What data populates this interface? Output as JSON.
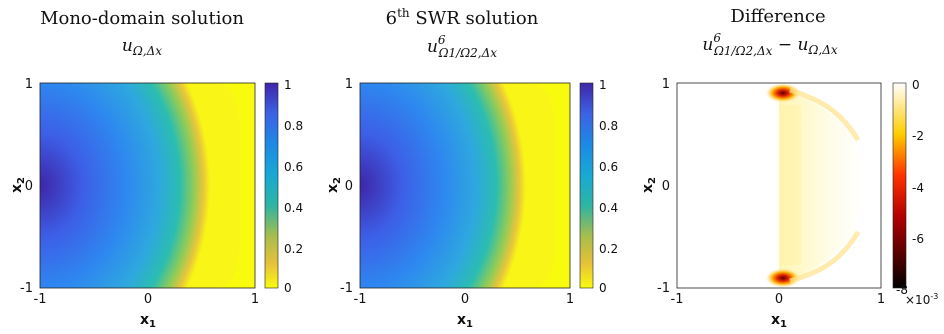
{
  "chart_data": [
    {
      "type": "heatmap",
      "title": "Mono-domain solution",
      "subtitle": "u_{Ω,Δx}",
      "subtitle_parts": {
        "base": "u",
        "sub": "Ω,Δx"
      },
      "xlabel": "x_1",
      "ylabel": "x_2",
      "xlim": [
        -1,
        1
      ],
      "ylim": [
        -1,
        1
      ],
      "xticks": [
        "-1",
        "0",
        "1"
      ],
      "yticks": [
        "-1",
        "0",
        "1"
      ],
      "colorbar": {
        "range": [
          0,
          1
        ],
        "ticks": [
          "1",
          "0.8",
          "0.6",
          "0.4",
          "0.2",
          "0"
        ],
        "colormap": "parula"
      }
    },
    {
      "type": "heatmap",
      "title": "6th SWR solution",
      "title_parts": {
        "num": "6",
        "sup": "th",
        "rest": " SWR solution"
      },
      "subtitle": "u^6_{Ω1/Ω2,Δx}",
      "subtitle_parts": {
        "base": "u",
        "sup": "6",
        "sub": "Ω1/Ω2,Δx"
      },
      "xlabel": "x_1",
      "ylabel": "x_2",
      "xlim": [
        -1,
        1
      ],
      "ylim": [
        -1,
        1
      ],
      "xticks": [
        "-1",
        "0",
        "1"
      ],
      "yticks": [
        "-1",
        "0",
        "1"
      ],
      "colorbar": {
        "range": [
          0,
          1
        ],
        "ticks": [
          "1",
          "0.8",
          "0.6",
          "0.4",
          "0.2",
          "0"
        ],
        "colormap": "parula"
      }
    },
    {
      "type": "heatmap",
      "title": "Difference",
      "subtitle": "u^6_{Ω1/Ω2,Δx} − u_{Ω,Δx}",
      "subtitle_parts": {
        "base": "u",
        "sup": "6",
        "sub": "Ω1/Ω2,Δx",
        "op": " − ",
        "base2": "u",
        "sub2": "Ω,Δx"
      },
      "xlabel": "x_1",
      "ylabel": "x_2",
      "xlim": [
        -1,
        1
      ],
      "ylim": [
        -1,
        1
      ],
      "xticks": [
        "-1",
        "0",
        "1"
      ],
      "yticks": [
        "-1",
        "0",
        "1"
      ],
      "colorbar": {
        "range": [
          -8,
          0
        ],
        "ticks": [
          "0",
          "-2",
          "-4",
          "-6",
          "-8"
        ],
        "scale_label": "×10",
        "scale_exp": "-3",
        "colormap": "hot"
      }
    }
  ]
}
